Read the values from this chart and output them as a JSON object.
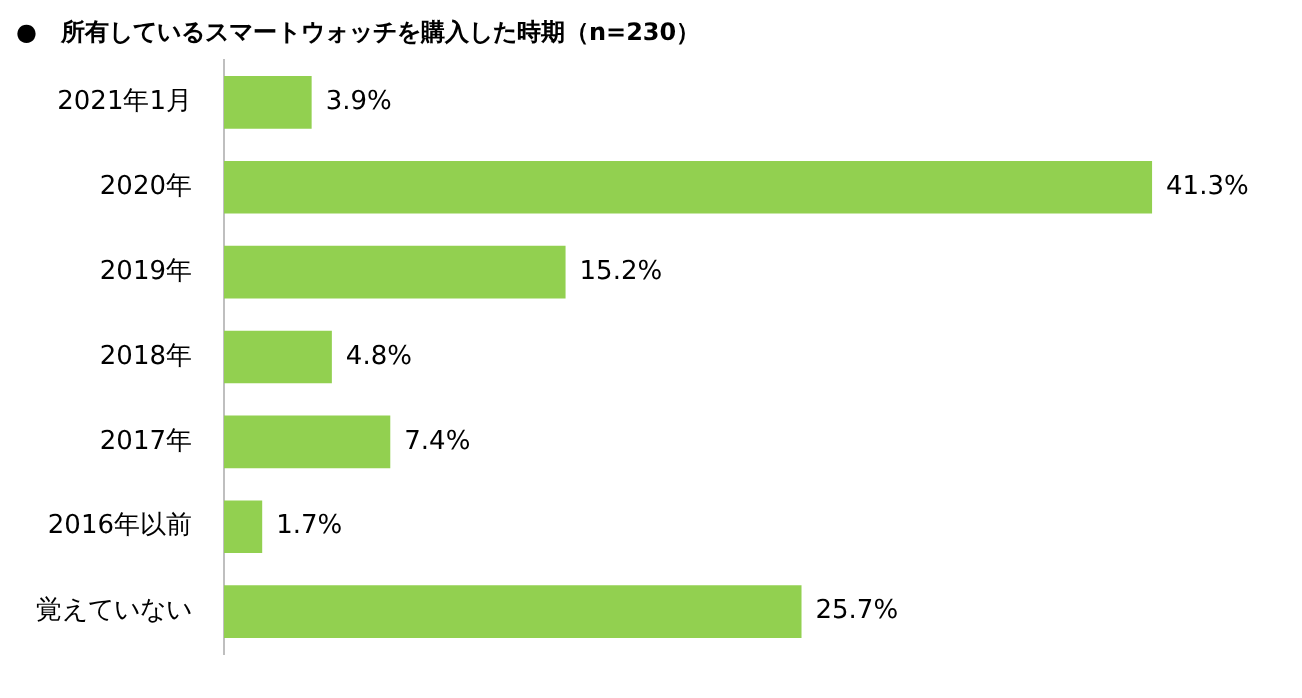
{
  "chart_data": {
    "type": "bar",
    "orientation": "horizontal",
    "title": "●　所有しているスマートウォッチを購入した時期（n=230）",
    "categories": [
      "2021年1月",
      "2020年",
      "2019年",
      "2018年",
      "2017年",
      "2016年以前",
      "覚えていない"
    ],
    "values": [
      3.9,
      41.3,
      15.2,
      4.8,
      7.4,
      1.7,
      25.7
    ],
    "value_labels": [
      "3.9%",
      "41.3%",
      "15.2%",
      "4.8%",
      "7.4%",
      "1.7%",
      "25.7%"
    ],
    "color": "#92d050",
    "legend": false
  }
}
